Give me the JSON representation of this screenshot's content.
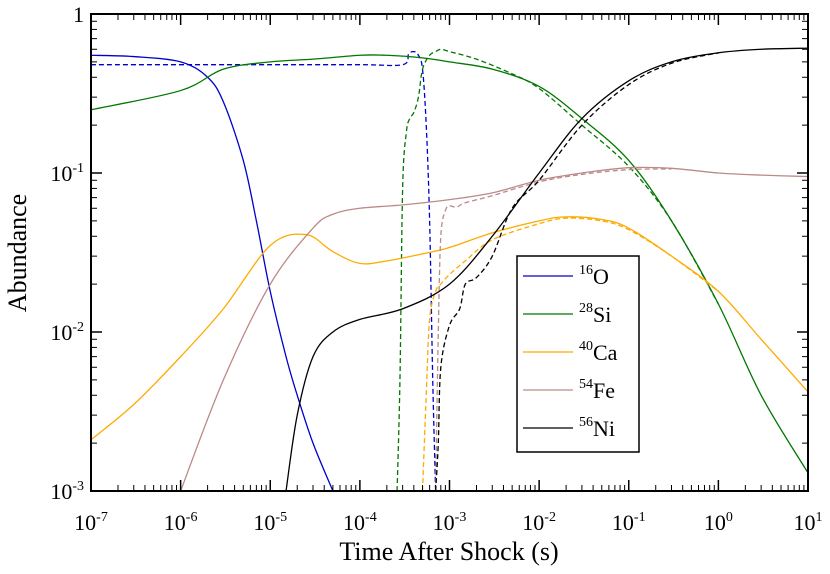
{
  "chart_data": {
    "type": "line",
    "title": "",
    "xlabel": "Time After Shock (s)",
    "ylabel": "Abundance",
    "xscale": "log",
    "yscale": "log",
    "xlim": [
      1e-07,
      10
    ],
    "ylim": [
      0.001,
      1
    ],
    "grid": false,
    "legend_position": "lower-right",
    "x_ticks": [
      {
        "base": "10",
        "exp": "-7"
      },
      {
        "base": "10",
        "exp": "-6"
      },
      {
        "base": "10",
        "exp": "-5"
      },
      {
        "base": "10",
        "exp": "-4"
      },
      {
        "base": "10",
        "exp": "-3"
      },
      {
        "base": "10",
        "exp": "-2"
      },
      {
        "base": "10",
        "exp": "-1"
      },
      {
        "base": "10",
        "exp": "0"
      },
      {
        "base": "10",
        "exp": "1"
      }
    ],
    "y_ticks": [
      {
        "base": "1",
        "exp": ""
      },
      {
        "base": "10",
        "exp": "-1"
      },
      {
        "base": "10",
        "exp": "-2"
      },
      {
        "base": "10",
        "exp": "-3"
      }
    ],
    "series": [
      {
        "name": "O",
        "mass": "16",
        "color": "#0000cc",
        "style": "solid",
        "x": [
          1e-07,
          3e-07,
          1e-06,
          2e-06,
          3e-06,
          5e-06,
          7e-06,
          1e-05,
          1.5e-05,
          2e-05,
          3e-05,
          5e-05
        ],
        "y": [
          0.55,
          0.54,
          0.5,
          0.4,
          0.28,
          0.12,
          0.05,
          0.018,
          0.007,
          0.004,
          0.002,
          0.001
        ]
      },
      {
        "name": "O (dashed)",
        "color": "#0000cc",
        "style": "dashed",
        "x": [
          1e-07,
          1e-05,
          0.0001,
          0.0003,
          0.00035,
          0.0004,
          0.00045,
          0.0005,
          0.00055,
          0.0006,
          0.00065,
          0.0007
        ],
        "y": [
          0.48,
          0.48,
          0.48,
          0.48,
          0.56,
          0.58,
          0.55,
          0.45,
          0.2,
          0.05,
          0.005,
          0.001
        ]
      },
      {
        "name": "Si",
        "mass": "28",
        "color": "#007700",
        "style": "solid",
        "x": [
          1e-07,
          1e-06,
          3e-06,
          1e-05,
          3e-05,
          0.0001,
          0.0002,
          0.0005,
          0.001,
          0.003,
          0.01,
          0.03,
          0.1,
          0.3,
          1,
          3,
          10
        ],
        "y": [
          0.25,
          0.33,
          0.45,
          0.5,
          0.52,
          0.55,
          0.55,
          0.53,
          0.5,
          0.45,
          0.35,
          0.22,
          0.12,
          0.05,
          0.015,
          0.004,
          0.0013
        ]
      },
      {
        "name": "Si (dashed)",
        "color": "#007700",
        "style": "dashed",
        "x": [
          0.00026,
          0.00028,
          0.0003,
          0.00033,
          0.00036,
          0.0004,
          0.00045,
          0.0005,
          0.0006,
          0.0007,
          0.0008,
          0.001,
          0.002,
          0.005,
          0.01,
          0.03,
          0.1,
          0.3,
          1
        ],
        "y": [
          0.001,
          0.005,
          0.08,
          0.18,
          0.22,
          0.24,
          0.3,
          0.45,
          0.55,
          0.58,
          0.6,
          0.58,
          0.52,
          0.42,
          0.34,
          0.2,
          0.11,
          0.05,
          0.015
        ]
      },
      {
        "name": "Ca",
        "mass": "40",
        "color": "#ffaa00",
        "style": "solid",
        "x": [
          1e-07,
          3e-07,
          1e-06,
          3e-06,
          1e-05,
          2.5e-05,
          5e-05,
          0.0001,
          0.0002,
          0.0005,
          0.001,
          0.003,
          0.01,
          0.02,
          0.05,
          0.1,
          0.3,
          1,
          3,
          10
        ],
        "y": [
          0.0021,
          0.0035,
          0.007,
          0.014,
          0.035,
          0.041,
          0.032,
          0.027,
          0.028,
          0.031,
          0.034,
          0.042,
          0.05,
          0.053,
          0.051,
          0.045,
          0.03,
          0.018,
          0.009,
          0.0042
        ]
      },
      {
        "name": "Ca (dashed)",
        "color": "#ffaa00",
        "style": "dashed",
        "x": [
          0.0005,
          0.00055,
          0.0006,
          0.0007,
          0.0008,
          0.001,
          0.0015,
          0.003,
          0.01,
          0.02,
          0.05,
          0.1,
          0.3,
          1
        ],
        "y": [
          0.001,
          0.004,
          0.012,
          0.018,
          0.02,
          0.023,
          0.028,
          0.038,
          0.048,
          0.052,
          0.05,
          0.044,
          0.03,
          0.018
        ]
      },
      {
        "name": "Fe",
        "mass": "54",
        "color": "#bb8a88",
        "style": "solid",
        "x": [
          1e-06,
          3e-06,
          1e-05,
          3e-05,
          5e-05,
          0.0001,
          0.0003,
          0.001,
          0.003,
          0.01,
          0.03,
          0.1,
          0.3,
          1,
          3,
          10
        ],
        "y": [
          0.001,
          0.005,
          0.02,
          0.045,
          0.055,
          0.06,
          0.063,
          0.068,
          0.075,
          0.09,
          0.1,
          0.108,
          0.107,
          0.1,
          0.097,
          0.095
        ]
      },
      {
        "name": "Fe (dashed)",
        "color": "#bb8a88",
        "style": "dashed",
        "x": [
          0.0007,
          0.00075,
          0.0008,
          0.0009,
          0.001,
          0.0012,
          0.0015,
          0.003,
          0.01,
          0.03,
          0.1,
          0.3
        ],
        "y": [
          0.001,
          0.01,
          0.04,
          0.058,
          0.062,
          0.061,
          0.065,
          0.072,
          0.088,
          0.098,
          0.105,
          0.106
        ]
      },
      {
        "name": "Ni",
        "mass": "56",
        "color": "#000000",
        "style": "solid",
        "x": [
          1.5e-05,
          2e-05,
          3e-05,
          5e-05,
          0.0001,
          0.0003,
          0.001,
          0.003,
          0.01,
          0.03,
          0.1,
          0.3,
          1,
          3,
          10
        ],
        "y": [
          0.001,
          0.003,
          0.007,
          0.01,
          0.012,
          0.014,
          0.02,
          0.04,
          0.1,
          0.22,
          0.38,
          0.5,
          0.57,
          0.6,
          0.61
        ]
      },
      {
        "name": "Ni (dashed)",
        "color": "#000000",
        "style": "dashed",
        "x": [
          0.0007,
          0.00075,
          0.0008,
          0.001,
          0.0013,
          0.0015,
          0.002,
          0.003,
          0.005,
          0.01,
          0.03,
          0.1,
          0.3,
          1
        ],
        "y": [
          0.001,
          0.002,
          0.006,
          0.011,
          0.014,
          0.02,
          0.022,
          0.03,
          0.06,
          0.09,
          0.2,
          0.36,
          0.49,
          0.57
        ]
      }
    ],
    "legend": [
      {
        "mass": "16",
        "element": "O",
        "color": "#0000cc"
      },
      {
        "mass": "28",
        "element": "Si",
        "color": "#007700"
      },
      {
        "mass": "40",
        "element": "Ca",
        "color": "#ffaa00"
      },
      {
        "mass": "54",
        "element": "Fe",
        "color": "#bb8a88"
      },
      {
        "mass": "56",
        "element": "Ni",
        "color": "#000000"
      }
    ]
  }
}
